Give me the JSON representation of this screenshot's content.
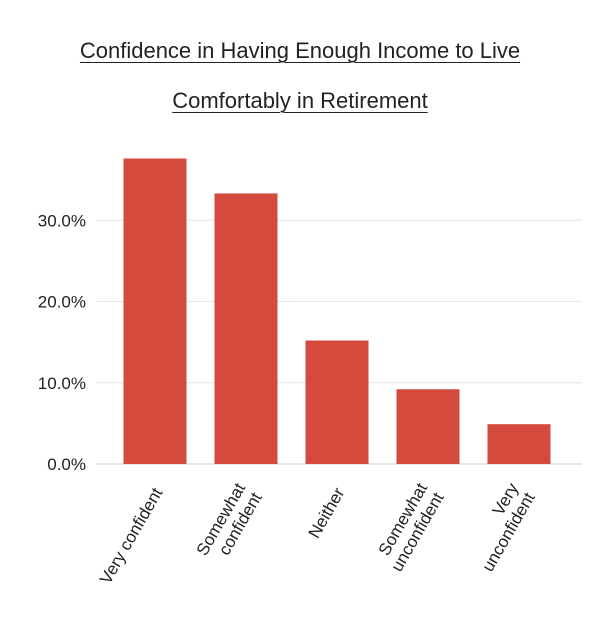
{
  "chart_data": {
    "type": "bar",
    "title_lines": [
      "Confidence in Having Enough Income to Live",
      "Comfortably in Retirement"
    ],
    "categories": [
      [
        "Very confident"
      ],
      [
        "Somewhat",
        "confident"
      ],
      [
        "Neither"
      ],
      [
        "Somewhat",
        "unconfident"
      ],
      [
        "Very",
        "unconfident"
      ]
    ],
    "values": [
      37.6,
      33.3,
      15.2,
      9.2,
      4.9
    ],
    "ylim": [
      0,
      40
    ],
    "yticks": [
      0,
      10,
      20,
      30
    ],
    "ytick_labels": [
      "0.0%",
      "10.0%",
      "20.0%",
      "30.0%"
    ],
    "xlabel": "",
    "ylabel": "",
    "grid": true,
    "bar_color": "#d44a3d",
    "grid_color": "#e6e6e6",
    "axis_color": "#cccccc"
  }
}
